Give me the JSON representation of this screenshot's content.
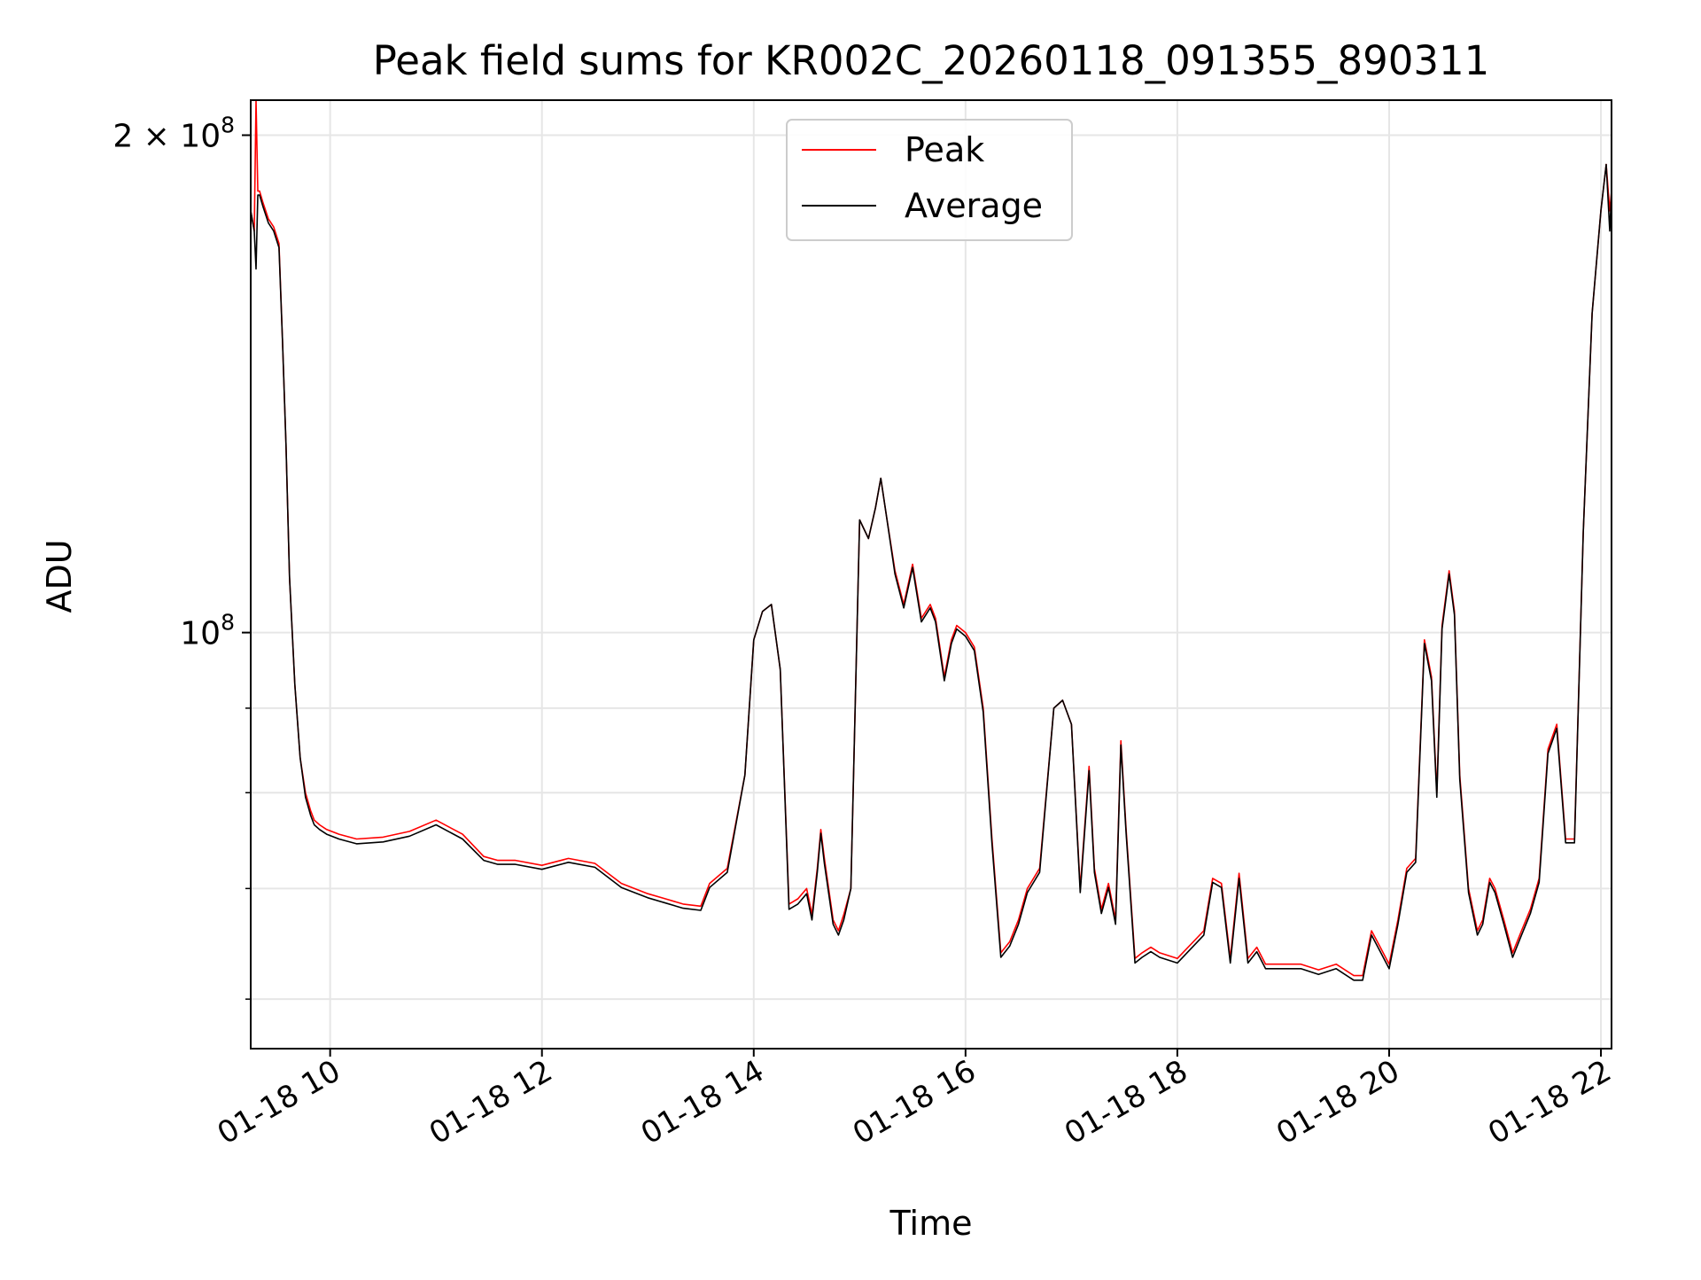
{
  "chart_data": {
    "type": "line",
    "title": "Peak field sums for KR002C_20260118_091355_890311",
    "xlabel": "Time",
    "ylabel": "ADU",
    "x_unit": "time (2026-01-18, hours of day)",
    "xlim": [
      "2026-01-18 09:15",
      "2026-01-18 22:06"
    ],
    "ylim": [
      56000000,
      210000000
    ],
    "yscale": "log",
    "grid": true,
    "legend": "upper center",
    "x_ticks": [
      "01-18 10",
      "01-18 12",
      "01-18 14",
      "01-18 16",
      "01-18 18",
      "01-18 20",
      "01-18 22"
    ],
    "y_tick_labels": [
      {
        "value": 200000000,
        "base": "2 × 10",
        "exp": "8"
      },
      {
        "value": 100000000,
        "base": "10",
        "exp": "8"
      }
    ],
    "y_minor_ticks": [
      60000000,
      70000000,
      80000000,
      90000000
    ],
    "x": [
      "09:15",
      "09:17",
      "09:18",
      "09:19",
      "09:20",
      "09:22",
      "09:25",
      "09:28",
      "09:31",
      "09:33",
      "09:35",
      "09:37",
      "09:40",
      "09:43",
      "09:46",
      "09:49",
      "09:51",
      "09:54",
      "09:58",
      "10:05",
      "10:15",
      "10:30",
      "10:45",
      "11:00",
      "11:15",
      "11:27",
      "11:35",
      "11:45",
      "12:00",
      "12:15",
      "12:30",
      "12:45",
      "13:00",
      "13:10",
      "13:20",
      "13:30",
      "13:35",
      "13:45",
      "13:55",
      "14:00",
      "14:05",
      "14:10",
      "14:15",
      "14:20",
      "14:25",
      "14:30",
      "14:33",
      "14:36",
      "14:38",
      "14:40",
      "14:45",
      "14:48",
      "14:51",
      "14:55",
      "15:00",
      "15:05",
      "15:09",
      "15:12",
      "15:15",
      "15:20",
      "15:25",
      "15:30",
      "15:35",
      "15:40",
      "15:43",
      "15:48",
      "15:52",
      "15:55",
      "16:00",
      "16:05",
      "16:10",
      "16:15",
      "16:20",
      "16:25",
      "16:30",
      "16:35",
      "16:42",
      "16:50",
      "16:55",
      "17:00",
      "17:05",
      "17:10",
      "17:13",
      "17:17",
      "17:21",
      "17:25",
      "17:28",
      "17:31",
      "17:36",
      "17:40",
      "17:45",
      "17:50",
      "18:00",
      "18:15",
      "18:20",
      "18:25",
      "18:30",
      "18:35",
      "18:40",
      "18:45",
      "18:50",
      "18:55",
      "19:00",
      "19:05",
      "19:10",
      "19:20",
      "19:30",
      "19:40",
      "19:45",
      "19:50",
      "19:55",
      "20:00",
      "20:05",
      "20:10",
      "20:15",
      "20:20",
      "20:24",
      "20:27",
      "20:30",
      "20:34",
      "20:37",
      "20:40",
      "20:45",
      "20:50",
      "20:53",
      "20:57",
      "21:00",
      "21:05",
      "21:10",
      "21:15",
      "21:20",
      "21:25",
      "21:30",
      "21:35",
      "21:40",
      "21:45",
      "21:50",
      "21:55",
      "22:00",
      "22:03",
      "22:05",
      "22:06"
    ],
    "series": [
      {
        "name": "Peak",
        "color": "#ff0000",
        "values": [
          180000000,
          175000000,
          210000000,
          185000000,
          185000000,
          182000000,
          178000000,
          176000000,
          172000000,
          150000000,
          130000000,
          108000000,
          93000000,
          84000000,
          80000000,
          78000000,
          77000000,
          76500000,
          76000000,
          75500000,
          75000000,
          75200000,
          75800000,
          77000000,
          75500000,
          73200000,
          72800000,
          72800000,
          72300000,
          73000000,
          72500000,
          70500000,
          69500000,
          69000000,
          68500000,
          68300000,
          70500000,
          72000000,
          82000000,
          99000000,
          103000000,
          104000000,
          95000000,
          68500000,
          69000000,
          70000000,
          67500000,
          72000000,
          76000000,
          73000000,
          67000000,
          66000000,
          67500000,
          70000000,
          117000000,
          114000000,
          119000000,
          124000000,
          118000000,
          109000000,
          104000000,
          110000000,
          102000000,
          104000000,
          102000000,
          94000000,
          99000000,
          101000000,
          100000000,
          98000000,
          90000000,
          75000000,
          64000000,
          65000000,
          67000000,
          70000000,
          72000000,
          90000000,
          91000000,
          88000000,
          70000000,
          83000000,
          72000000,
          68000000,
          70500000,
          67000000,
          86000000,
          76000000,
          63500000,
          64000000,
          64500000,
          64000000,
          63500000,
          66000000,
          71000000,
          70500000,
          63500000,
          71500000,
          63500000,
          64500000,
          63000000,
          63000000,
          63000000,
          63000000,
          63000000,
          62500000,
          63000000,
          62000000,
          62000000,
          66000000,
          64500000,
          63000000,
          67000000,
          72000000,
          73000000,
          99000000,
          94000000,
          80000000,
          101000000,
          109000000,
          103000000,
          82000000,
          70000000,
          66000000,
          67000000,
          71000000,
          70000000,
          67000000,
          64000000,
          66000000,
          68000000,
          71000000,
          85000000,
          88000000,
          75000000,
          75000000,
          115000000,
          156000000,
          180000000,
          192000000,
          180000000,
          185000000
        ]
      },
      {
        "name": "Average",
        "color": "#000000",
        "values": [
          180000000,
          175000000,
          166000000,
          184000000,
          184000000,
          181000000,
          177000000,
          175000000,
          171000000,
          150000000,
          130000000,
          108000000,
          93000000,
          84000000,
          79500000,
          77500000,
          76500000,
          76000000,
          75500000,
          75000000,
          74500000,
          74700000,
          75300000,
          76500000,
          75000000,
          72800000,
          72400000,
          72400000,
          71900000,
          72600000,
          72100000,
          70100000,
          69100000,
          68600000,
          68100000,
          67900000,
          70100000,
          71600000,
          82000000,
          99000000,
          103000000,
          104000000,
          95000000,
          68000000,
          68500000,
          69500000,
          67000000,
          71600000,
          75600000,
          72500000,
          66600000,
          65600000,
          67000000,
          70000000,
          117000000,
          114000000,
          119000000,
          124000000,
          118000000,
          108500000,
          103500000,
          109500000,
          101500000,
          103500000,
          101500000,
          93500000,
          98500000,
          100500000,
          99500000,
          97500000,
          89500000,
          74500000,
          63600000,
          64600000,
          66600000,
          69600000,
          71600000,
          90000000,
          91000000,
          88000000,
          69600000,
          82500000,
          71600000,
          67600000,
          70100000,
          66600000,
          85500000,
          75600000,
          63100000,
          63600000,
          64100000,
          63600000,
          63100000,
          65600000,
          70600000,
          70100000,
          63100000,
          71000000,
          63100000,
          64100000,
          62600000,
          62600000,
          62600000,
          62600000,
          62600000,
          62100000,
          62600000,
          61600000,
          61600000,
          65600000,
          64100000,
          62600000,
          66600000,
          71600000,
          72600000,
          98500000,
          93500000,
          79500000,
          100500000,
          108500000,
          102500000,
          81500000,
          69600000,
          65600000,
          66600000,
          70600000,
          69600000,
          66600000,
          63600000,
          65600000,
          67600000,
          70600000,
          84500000,
          87500000,
          74600000,
          74600000,
          115000000,
          156000000,
          180000000,
          192000000,
          175000000,
          185000000
        ]
      }
    ]
  }
}
